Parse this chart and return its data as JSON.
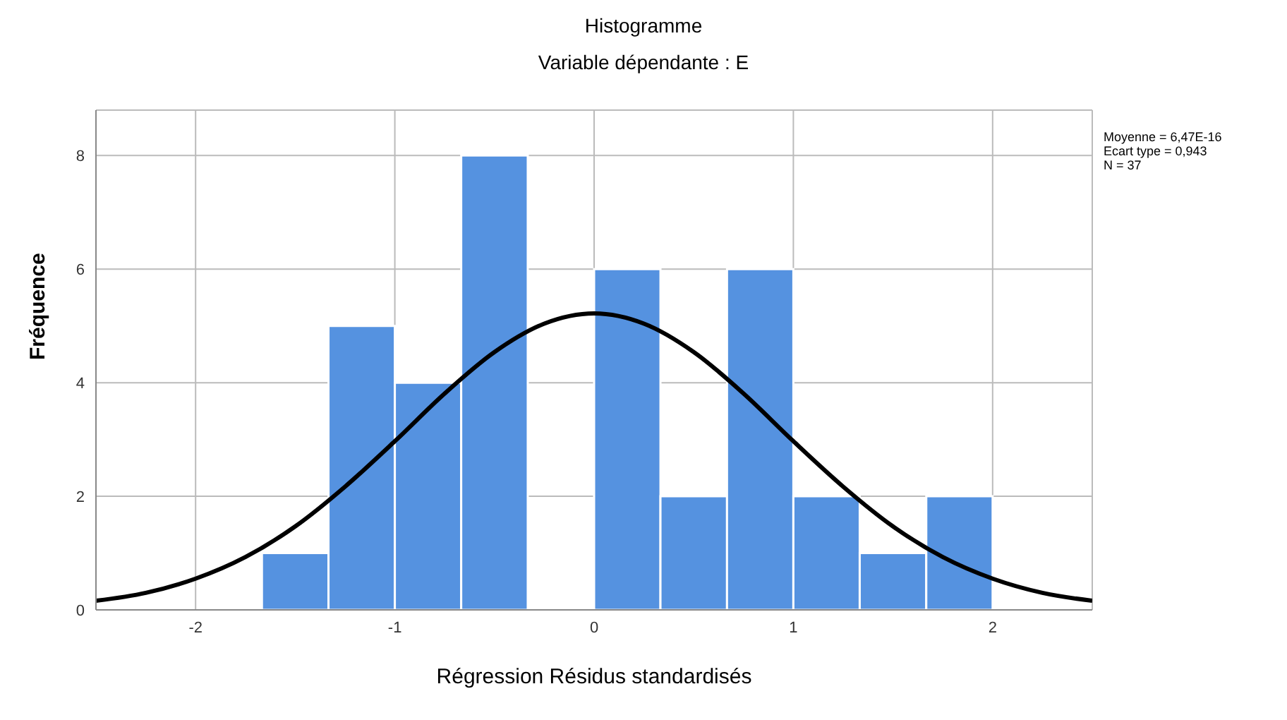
{
  "chart_data": {
    "type": "histogram",
    "title": "Histogramme",
    "subtitle": "Variable dépendante : E",
    "xlabel": "Régression Résidus standardisés",
    "ylabel": "Fréquence",
    "bins": [
      -1.667,
      -1.333,
      -1,
      -0.667,
      -0.333,
      0,
      0.333,
      0.667,
      1,
      1.333,
      1.667,
      2
    ],
    "values": [
      1,
      5,
      4,
      8,
      0,
      6,
      2,
      6,
      2,
      1,
      2
    ],
    "color": "#5592e0",
    "series": [
      {
        "type": "line",
        "color": "#000000",
        "x": [
          -2.5,
          -2.25,
          -2,
          -1.75,
          -1.5,
          -1.25,
          -1,
          -0.75,
          -0.5,
          -0.25,
          0,
          0.25,
          0.5,
          0.75,
          1,
          1.25,
          1.5,
          1.75,
          2,
          2.25,
          2.5
        ],
        "values": [
          0.16,
          0.3,
          0.55,
          0.93,
          1.47,
          2.17,
          2.97,
          3.81,
          4.54,
          5.04,
          5.22,
          5.04,
          4.54,
          3.81,
          2.97,
          2.17,
          1.47,
          0.93,
          0.55,
          0.3,
          0.16
        ]
      }
    ],
    "xlim": [
      -2.5,
      2.5
    ],
    "xticks": [
      -2,
      -1,
      0,
      1,
      2
    ],
    "ylim": [
      0,
      8.8
    ],
    "yticks": [
      0,
      2,
      4,
      6,
      8
    ],
    "grid": true,
    "marker": "none",
    "annotations": [
      "Moyenne = 6,47E-16",
      "Ecart type = 0,943",
      "N = 37"
    ]
  }
}
